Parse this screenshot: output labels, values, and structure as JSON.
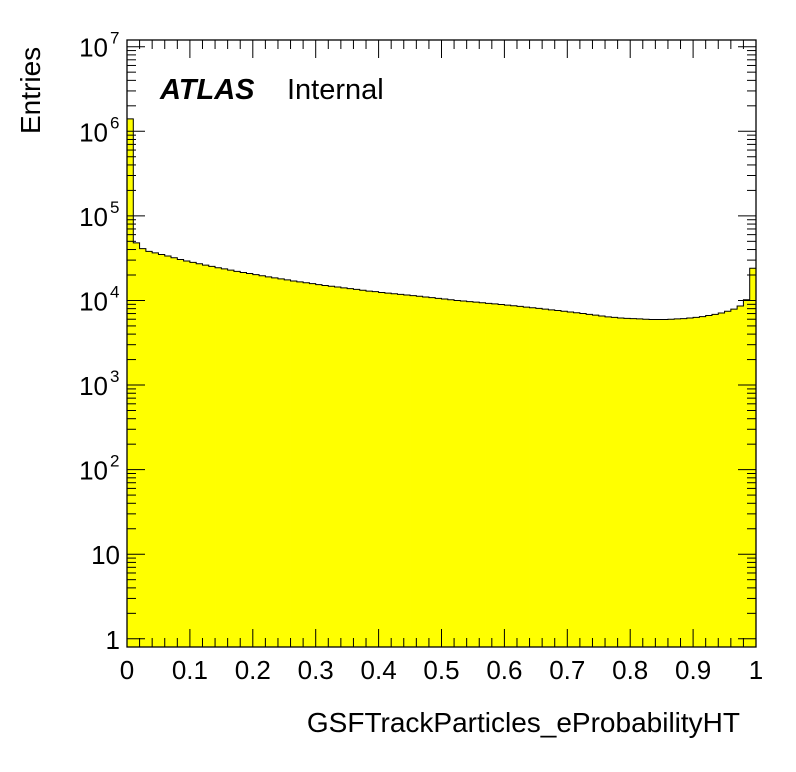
{
  "chart_data": {
    "type": "histogram",
    "title": "",
    "xlabel": "GSFTrackParticles_eProbabilityHT",
    "ylabel": "Entries",
    "xlim": [
      0,
      1
    ],
    "ylim": [
      0.8,
      12000000
    ],
    "yscale": "log",
    "fill_color": "#ffff00",
    "line_color": "#000000",
    "grid": false,
    "annotation": {
      "experiment": "ATLAS",
      "status": "Internal"
    },
    "x_ticks": [
      {
        "value": 0,
        "label": "0"
      },
      {
        "value": 0.1,
        "label": "0.1"
      },
      {
        "value": 0.2,
        "label": "0.2"
      },
      {
        "value": 0.3,
        "label": "0.3"
      },
      {
        "value": 0.4,
        "label": "0.4"
      },
      {
        "value": 0.5,
        "label": "0.5"
      },
      {
        "value": 0.6,
        "label": "0.6"
      },
      {
        "value": 0.7,
        "label": "0.7"
      },
      {
        "value": 0.8,
        "label": "0.8"
      },
      {
        "value": 0.9,
        "label": "0.9"
      },
      {
        "value": 1,
        "label": "1"
      }
    ],
    "y_ticks": [
      {
        "value": 1,
        "base": "1",
        "exp": ""
      },
      {
        "value": 10,
        "base": "10",
        "exp": ""
      },
      {
        "value": 100,
        "base": "10",
        "exp": "2"
      },
      {
        "value": 1000,
        "base": "10",
        "exp": "3"
      },
      {
        "value": 10000,
        "base": "10",
        "exp": "4"
      },
      {
        "value": 100000,
        "base": "10",
        "exp": "5"
      },
      {
        "value": 1000000,
        "base": "10",
        "exp": "6"
      },
      {
        "value": 10000000,
        "base": "10",
        "exp": "7"
      }
    ],
    "bin_edges_start": 0,
    "bin_width": 0.01,
    "values": [
      1400000,
      48000,
      41000,
      38000,
      36500,
      35000,
      33500,
      32000,
      30500,
      29300,
      28200,
      27200,
      26200,
      25300,
      24400,
      23600,
      22800,
      22100,
      21400,
      20800,
      20200,
      19600,
      19000,
      18500,
      18000,
      17500,
      17000,
      16600,
      16200,
      15800,
      15400,
      15000,
      14700,
      14400,
      14100,
      13800,
      13500,
      13200,
      12900,
      12700,
      12400,
      12200,
      12000,
      11800,
      11600,
      11400,
      11200,
      11000,
      10800,
      10600,
      10400,
      10200,
      10000,
      9850,
      9700,
      9550,
      9400,
      9250,
      9100,
      8950,
      8800,
      8650,
      8500,
      8350,
      8200,
      8050,
      7900,
      7750,
      7600,
      7450,
      7300,
      7150,
      7000,
      6850,
      6700,
      6550,
      6400,
      6300,
      6200,
      6150,
      6100,
      6050,
      6000,
      5950,
      5950,
      5950,
      6000,
      6050,
      6100,
      6200,
      6300,
      6450,
      6650,
      6850,
      7100,
      7450,
      7900,
      8600,
      10200,
      24000
    ]
  }
}
